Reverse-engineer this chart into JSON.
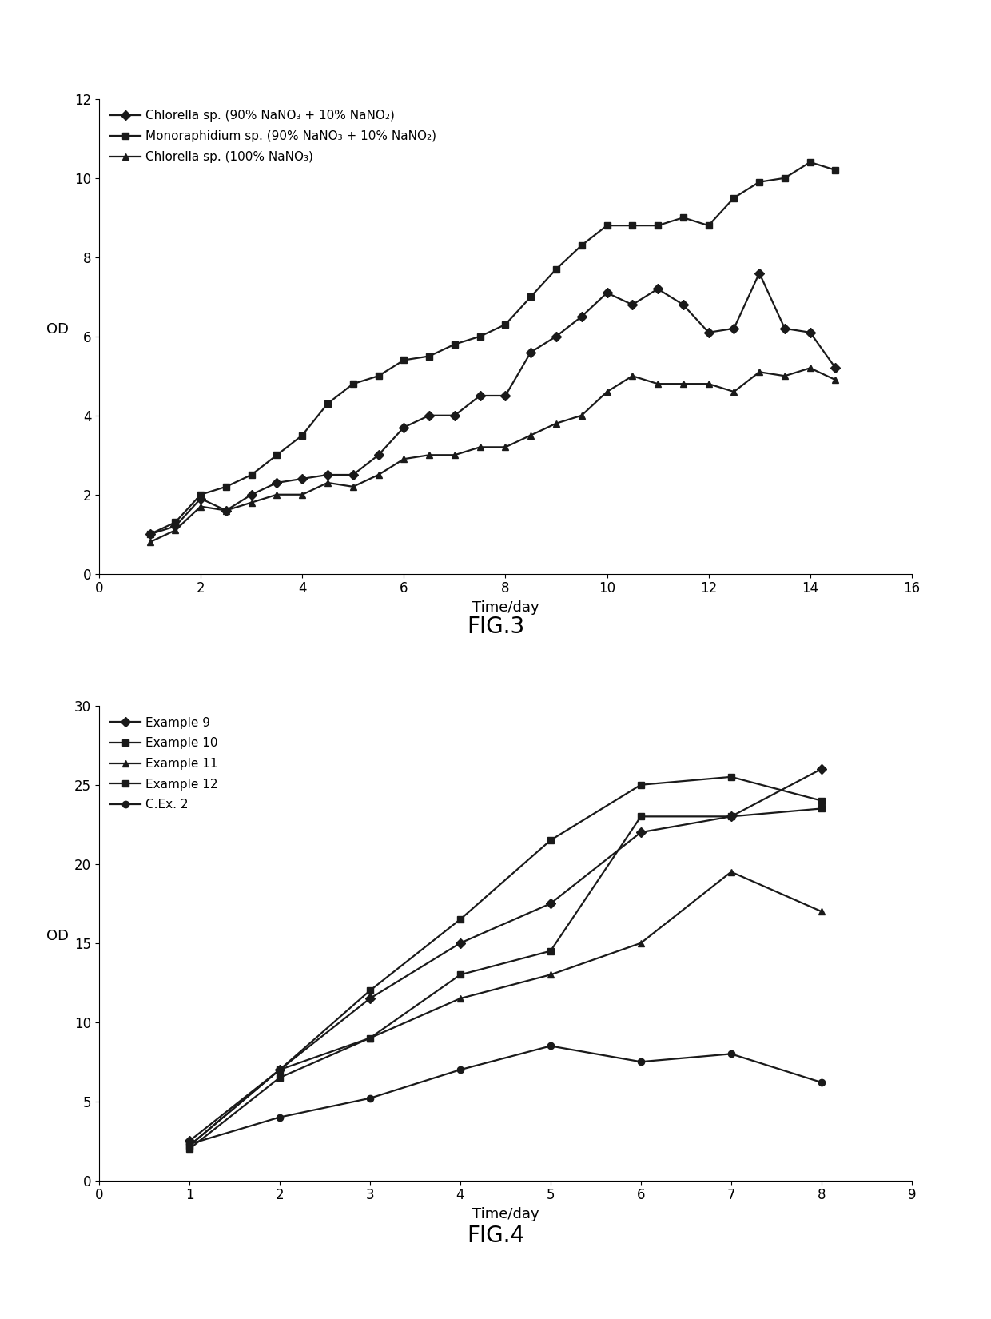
{
  "fig3": {
    "title": "FIG.3",
    "xlabel": "Time/day",
    "ylabel": "OD",
    "xlim": [
      0,
      16
    ],
    "ylim": [
      0,
      12
    ],
    "xticks": [
      0,
      2,
      4,
      6,
      8,
      10,
      12,
      14,
      16
    ],
    "yticks": [
      0,
      2,
      4,
      6,
      8,
      10,
      12
    ],
    "series": [
      {
        "label_italic": "Chlorella",
        "label_rest": " sp. (90% NaNO₃ + 10% NaNO₂)",
        "marker": "D",
        "x": [
          1,
          1.5,
          2,
          2.5,
          3,
          3.5,
          4,
          4.5,
          5,
          5.5,
          6,
          6.5,
          7,
          7.5,
          8,
          8.5,
          9,
          9.5,
          10,
          10.5,
          11,
          11.5,
          12,
          12.5,
          13,
          13.5,
          14,
          14.5
        ],
        "y": [
          1.0,
          1.2,
          1.9,
          1.6,
          2.0,
          2.3,
          2.4,
          2.5,
          2.5,
          3.0,
          3.7,
          4.0,
          4.0,
          4.5,
          4.5,
          5.6,
          6.0,
          6.5,
          7.1,
          6.8,
          7.2,
          6.8,
          6.1,
          6.2,
          7.6,
          6.2,
          6.1,
          5.2
        ]
      },
      {
        "label_italic": "Monoraphidium",
        "label_rest": " sp. (90% NaNO₃ + 10% NaNO₂)",
        "marker": "s",
        "x": [
          1,
          1.5,
          2,
          2.5,
          3,
          3.5,
          4,
          4.5,
          5,
          5.5,
          6,
          6.5,
          7,
          7.5,
          8,
          8.5,
          9,
          9.5,
          10,
          10.5,
          11,
          11.5,
          12,
          12.5,
          13,
          13.5,
          14,
          14.5
        ],
        "y": [
          1.0,
          1.3,
          2.0,
          2.2,
          2.5,
          3.0,
          3.5,
          4.3,
          4.8,
          5.0,
          5.4,
          5.5,
          5.8,
          6.0,
          6.3,
          7.0,
          7.7,
          8.3,
          8.8,
          8.8,
          8.8,
          9.0,
          8.8,
          9.5,
          9.9,
          10.0,
          10.4,
          10.2
        ]
      },
      {
        "label_italic": "Chlorella",
        "label_rest": " sp. (100% NaNO₃)",
        "marker": "^",
        "x": [
          1,
          1.5,
          2,
          2.5,
          3,
          3.5,
          4,
          4.5,
          5,
          5.5,
          6,
          6.5,
          7,
          7.5,
          8,
          8.5,
          9,
          9.5,
          10,
          10.5,
          11,
          11.5,
          12,
          12.5,
          13,
          13.5,
          14,
          14.5
        ],
        "y": [
          0.8,
          1.1,
          1.7,
          1.6,
          1.8,
          2.0,
          2.0,
          2.3,
          2.2,
          2.5,
          2.9,
          3.0,
          3.0,
          3.2,
          3.2,
          3.5,
          3.8,
          4.0,
          4.6,
          5.0,
          4.8,
          4.8,
          4.8,
          4.6,
          5.1,
          5.0,
          5.2,
          4.9
        ]
      }
    ]
  },
  "fig4": {
    "title": "FIG.4",
    "xlabel": "Time/day",
    "ylabel": "OD",
    "xlim": [
      0,
      9
    ],
    "ylim": [
      0,
      30
    ],
    "xticks": [
      0,
      1,
      2,
      3,
      4,
      5,
      6,
      7,
      8,
      9
    ],
    "yticks": [
      0,
      5,
      10,
      15,
      20,
      25,
      30
    ],
    "series": [
      {
        "label": "Example 9",
        "marker": "D",
        "x": [
          1,
          2,
          3,
          4,
          5,
          6,
          7,
          8
        ],
        "y": [
          2.5,
          7.0,
          11.5,
          15.0,
          17.5,
          22.0,
          23.0,
          26.0
        ]
      },
      {
        "label": "Example 10",
        "marker": "s",
        "x": [
          1,
          2,
          3,
          4,
          5,
          6,
          7,
          8
        ],
        "y": [
          2.2,
          7.0,
          12.0,
          16.5,
          21.5,
          25.0,
          25.5,
          24.0
        ]
      },
      {
        "label": "Example 11",
        "marker": "^",
        "x": [
          1,
          2,
          3,
          4,
          5,
          6,
          7,
          8
        ],
        "y": [
          2.2,
          7.0,
          9.0,
          11.5,
          13.0,
          15.0,
          19.5,
          17.0
        ]
      },
      {
        "label": "Example 12",
        "marker": "s",
        "x": [
          1,
          2,
          3,
          4,
          5,
          6,
          7,
          8
        ],
        "y": [
          2.0,
          6.5,
          9.0,
          13.0,
          14.5,
          23.0,
          23.0,
          23.5
        ]
      },
      {
        "label": "C.Ex. 2",
        "marker": "o",
        "x": [
          1,
          2,
          3,
          4,
          5,
          6,
          7,
          8
        ],
        "y": [
          2.3,
          4.0,
          5.2,
          7.0,
          8.5,
          7.5,
          8.0,
          6.2
        ]
      }
    ]
  },
  "line_color": "#1a1a1a",
  "marker_size": 6,
  "line_width": 1.6,
  "font_size_label": 13,
  "font_size_tick": 12,
  "font_size_legend": 11,
  "font_size_fig_title": 20,
  "background_color": "#ffffff"
}
